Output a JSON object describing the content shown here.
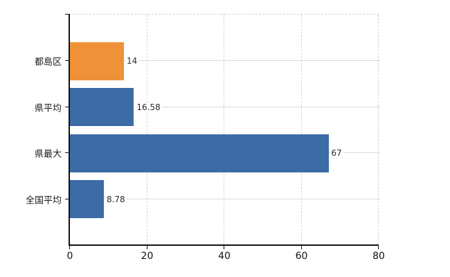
{
  "chart": {
    "background": "#ffffff",
    "axis_color": "#111111",
    "h_grid_color": "#d7ddd3",
    "v_grid_color": "#d6d2d2",
    "category_label_color": "#1a1a1a",
    "value_label_color": "#2b2b2b"
  },
  "chart_data": {
    "type": "bar",
    "orientation": "horizontal",
    "title": "",
    "xlabel": "",
    "ylabel": "",
    "legend": "none",
    "grid": "on",
    "categories": [
      "都島区",
      "県平均",
      "県最大",
      "全国平均"
    ],
    "values": [
      14,
      16.58,
      67,
      8.78
    ],
    "value_labels": [
      "14",
      "16.58",
      "67",
      "8.78"
    ],
    "bar_colors": [
      "#ef9138",
      "#3c6ba6",
      "#3c6ba6",
      "#3c6ba6"
    ],
    "xlim": [
      0,
      80
    ],
    "x_ticks": [
      0,
      20,
      40,
      60,
      80
    ],
    "x_tick_labels": [
      "0",
      "20",
      "40",
      "60",
      "80"
    ]
  }
}
